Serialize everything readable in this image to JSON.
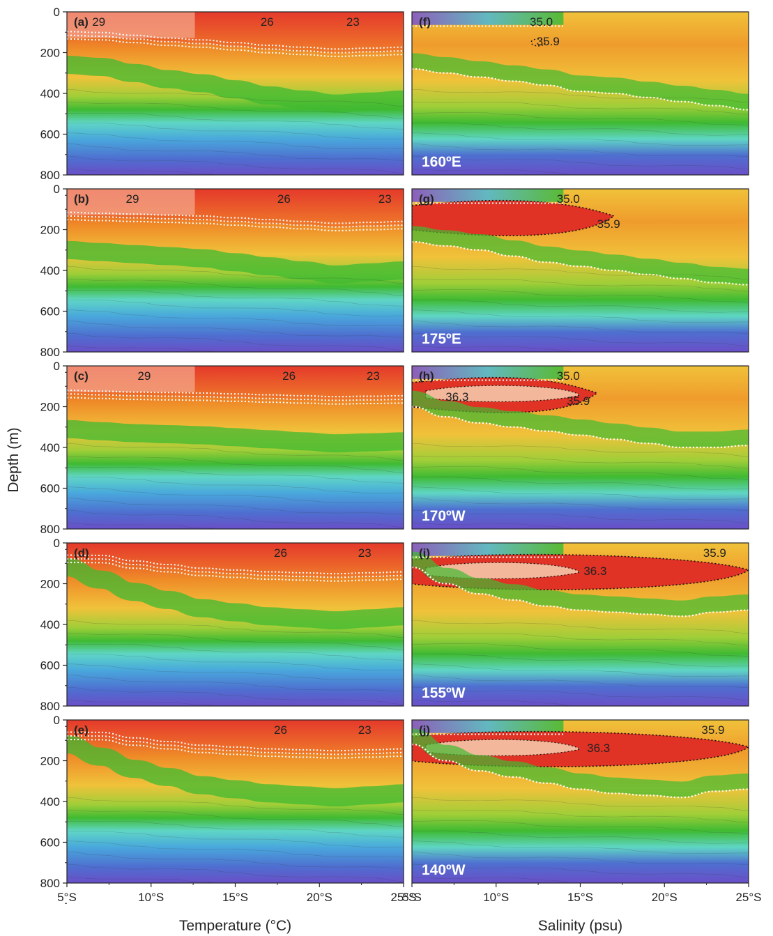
{
  "chart_data": {
    "type": "heatmap",
    "ylabel": "Depth (m)",
    "y_ticks": [
      "0",
      "200",
      "400",
      "600",
      "800"
    ],
    "x_ticks": [
      "5°S",
      "10°S",
      "15°S",
      "20°S",
      "25°S"
    ],
    "x_range_lat_south": [
      5,
      25
    ],
    "y_range_depth_m": [
      0,
      800
    ],
    "y_inverted": true,
    "grid": false,
    "colormap": [
      "#6a4fc8",
      "#4e6fd0",
      "#49b8d8",
      "#5fd6c4",
      "#3fba32",
      "#9fce38",
      "#f0c23a",
      "#ef8a28",
      "#e03225",
      "#f3a489"
    ],
    "columns": [
      {
        "variable": "temperature",
        "xlabel": "Temperature (°C)",
        "panels": [
          {
            "letter": "(a)",
            "contour_labels": [
              "29",
              "26",
              "23"
            ],
            "thermocline_depth_m": [
              260,
              270,
              300,
              330,
              350,
              380,
              410,
              430,
              450,
              440,
              430
            ]
          },
          {
            "letter": "(b)",
            "contour_labels": [
              "29",
              "26",
              "23"
            ],
            "thermocline_depth_m": [
              300,
              310,
              320,
              330,
              340,
              360,
              380,
              400,
              420,
              410,
              400
            ]
          },
          {
            "letter": "(c)",
            "contour_labels": [
              "29",
              "26",
              "23"
            ],
            "thermocline_depth_m": [
              310,
              320,
              330,
              335,
              340,
              350,
              360,
              370,
              380,
              375,
              370
            ]
          },
          {
            "letter": "(d)",
            "contour_labels": [
              "26",
              "23"
            ],
            "thermocline_depth_m": [
              120,
              180,
              240,
              280,
              320,
              340,
              360,
              370,
              380,
              370,
              360
            ]
          },
          {
            "letter": "(e)",
            "contour_labels": [
              "26",
              "23"
            ],
            "thermocline_depth_m": [
              120,
              180,
              240,
              280,
              320,
              340,
              360,
              370,
              380,
              370,
              360
            ]
          }
        ]
      },
      {
        "variable": "salinity",
        "xlabel": "Salinity (psu)",
        "panels": [
          {
            "letter": "(f)",
            "longitude": "160ºE",
            "contour_labels": [
              "35.0",
              "35.9"
            ],
            "isohaline_35_0_depth_m": [
              280,
              300,
              320,
              340,
              360,
              390,
              400,
              420,
              440,
              460,
              480
            ]
          },
          {
            "letter": "(g)",
            "longitude": "175ºE",
            "contour_labels": [
              "35.0",
              "35.9"
            ],
            "isohaline_35_0_depth_m": [
              260,
              280,
              300,
              330,
              360,
              380,
              400,
              420,
              440,
              460,
              470
            ]
          },
          {
            "letter": "(h)",
            "longitude": "170ºW",
            "contour_labels": [
              "35.0",
              "36.3",
              "35.9"
            ],
            "isohaline_35_0_depth_m": [
              200,
              250,
              280,
              300,
              320,
              340,
              360,
              380,
              400,
              400,
              390
            ]
          },
          {
            "letter": "(i)",
            "longitude": "155ºW",
            "contour_labels": [
              "36.3",
              "35.9"
            ],
            "isohaline_35_0_depth_m": [
              120,
              200,
              250,
              280,
              310,
              330,
              340,
              350,
              360,
              340,
              330
            ]
          },
          {
            "letter": "(j)",
            "longitude": "140ºW",
            "contour_labels": [
              "36.3",
              "35.9"
            ],
            "isohaline_35_0_depth_m": [
              120,
              200,
              250,
              280,
              310,
              340,
              360,
              370,
              380,
              350,
              340
            ]
          }
        ]
      }
    ]
  }
}
